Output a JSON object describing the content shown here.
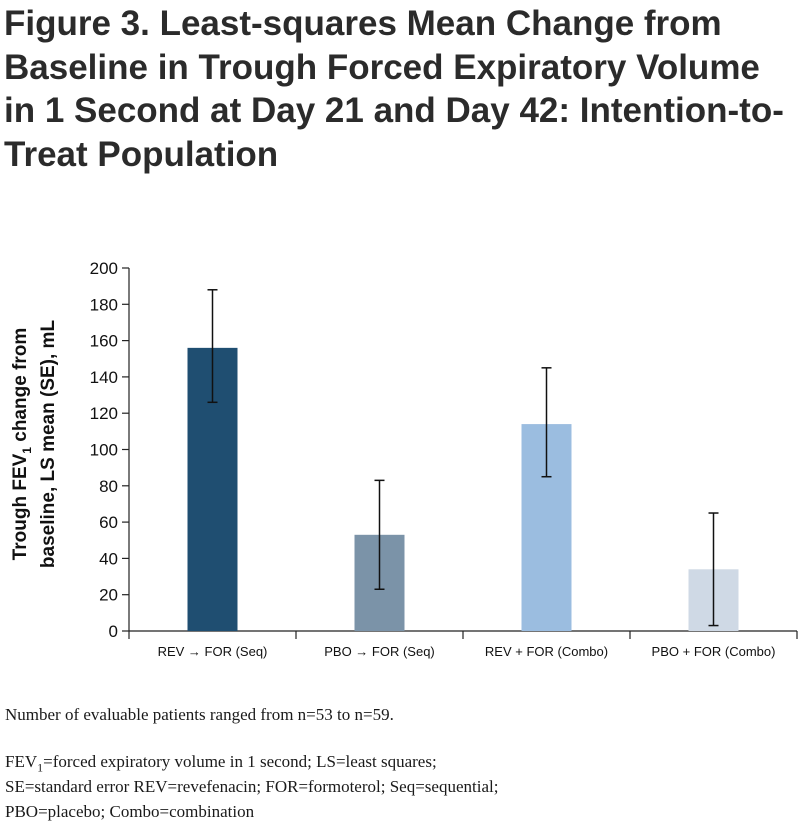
{
  "figure": {
    "title": "Figure 3. Least-squares Mean Change from Baseline in Trough Forced Expiratory Volume in 1 Second at Day 21 and Day 42: Intention-to-Treat Population"
  },
  "chart_data": {
    "type": "bar",
    "ylabel_line1": "Trough FEV",
    "ylabel_sub": "1",
    "ylabel_line1_rest": " change from",
    "ylabel_line2": "baseline, LS mean (SE), mL",
    "ylim": [
      0,
      200
    ],
    "yticks": [
      0,
      20,
      40,
      60,
      80,
      100,
      120,
      140,
      160,
      180,
      200
    ],
    "grid": false,
    "categories": [
      "REV → FOR (Seq)",
      "PBO → FOR (Seq)",
      "REV + FOR (Combo)",
      "PBO + FOR (Combo)"
    ],
    "values": [
      156,
      53,
      114,
      34
    ],
    "error_low": [
      126,
      23,
      85,
      3
    ],
    "error_high": [
      188,
      83,
      145,
      65
    ],
    "colors": [
      "#1f4e71",
      "#7b93a8",
      "#9bbde0",
      "#cfd9e5"
    ]
  },
  "notes": {
    "line1": "Number of evaluable patients ranged from n=53 to n=59.",
    "line2_pre": "FEV",
    "line2_sub": "1",
    "line2_post": "=forced expiratory volume in 1 second; LS=least squares;",
    "line3": "SE=standard error REV=revefenacin; FOR=formoterol; Seq=sequential;",
    "line4": "PBO=placebo; Combo=combination"
  }
}
